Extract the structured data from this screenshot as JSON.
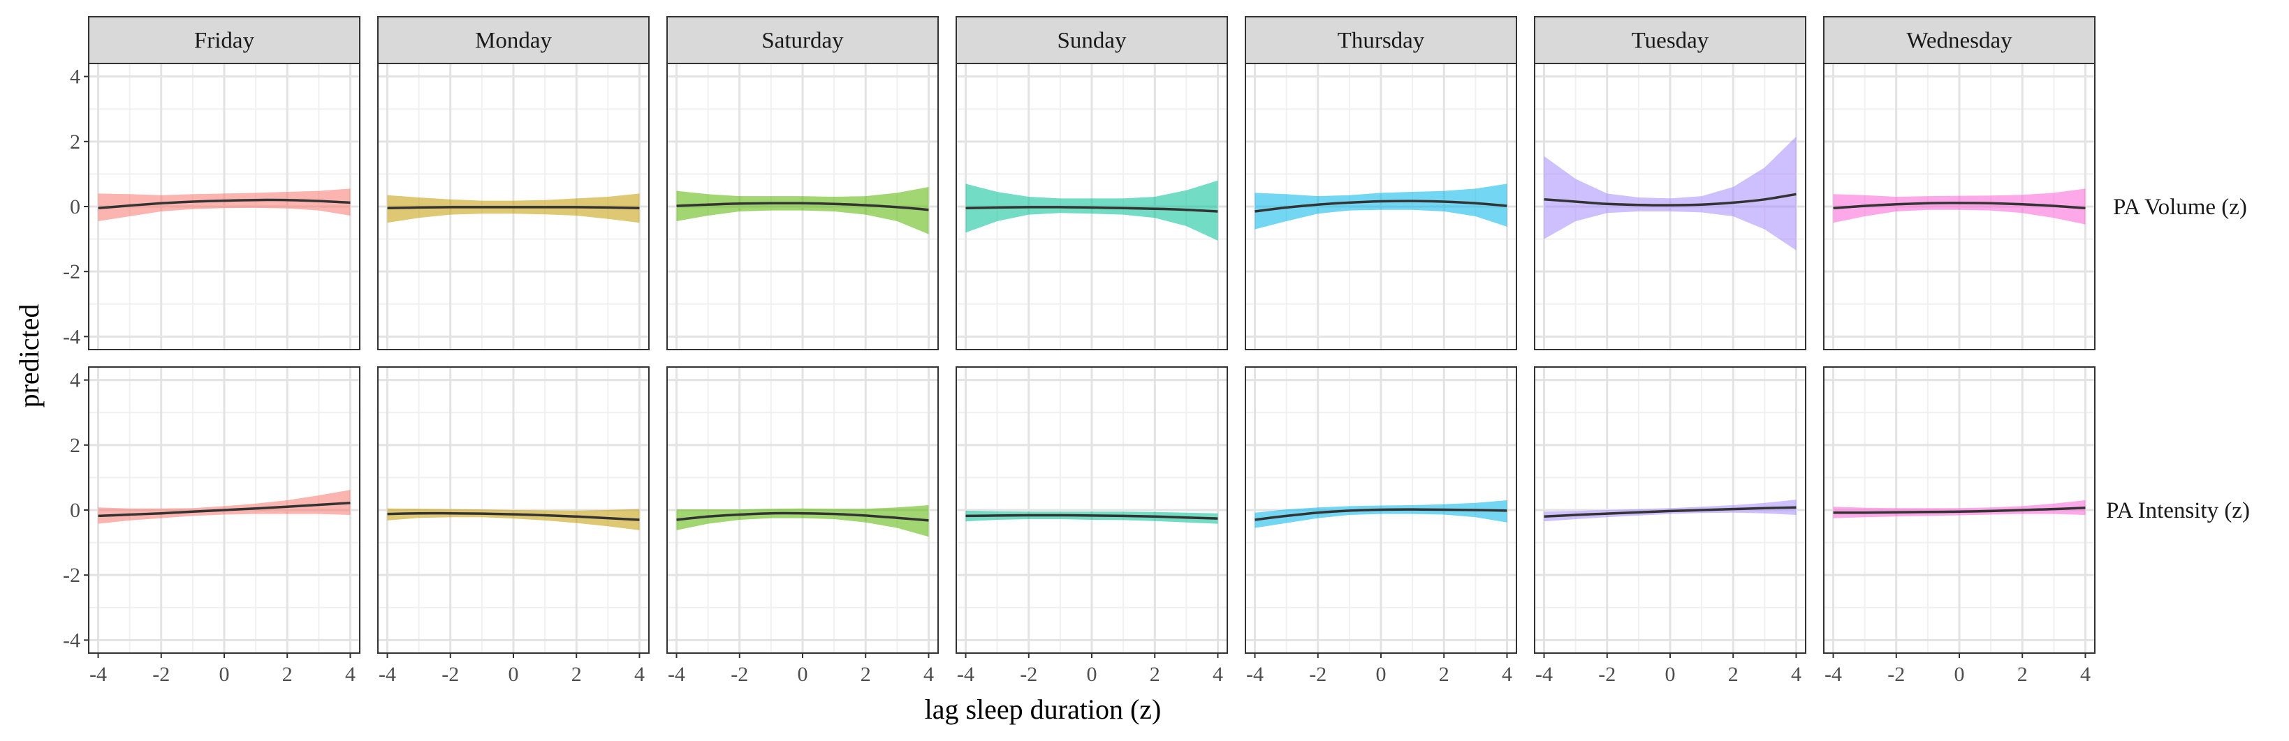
{
  "chart_data": {
    "type": "line",
    "xlabel": "lag sleep duration (z)",
    "ylabel": "predicted",
    "columns": [
      "Friday",
      "Monday",
      "Saturday",
      "Sunday",
      "Thursday",
      "Tuesday",
      "Wednesday"
    ],
    "rows": [
      "PA Volume (z)",
      "PA Intensity (z)"
    ],
    "xlim": [
      -4.3,
      4.3
    ],
    "ylim": [
      -4.4,
      4.4
    ],
    "x_ticks": [
      -4,
      -2,
      0,
      2,
      4
    ],
    "y_ticks": [
      -4,
      -2,
      0,
      2,
      4
    ],
    "x_tick_labels": [
      "-4",
      "-2",
      "0",
      "2",
      "4"
    ],
    "y_tick_labels": [
      "-4",
      "-2",
      "0",
      "2",
      "4"
    ],
    "grid": true,
    "line_color": "#333333",
    "colors": {
      "Friday": "#F8766D",
      "Monday": "#C49A00",
      "Saturday": "#53B400",
      "Sunday": "#00C094",
      "Thursday": "#00B6EB",
      "Tuesday": "#A58AFF",
      "Wednesday": "#FB61D7"
    },
    "x": [
      -4,
      -3,
      -2,
      -1,
      0,
      1,
      2,
      3,
      4
    ],
    "panels": [
      {
        "row": "PA Volume (z)",
        "col": "Friday",
        "fit": [
          -0.05,
          0.03,
          0.1,
          0.15,
          0.18,
          0.2,
          0.2,
          0.17,
          0.12
        ],
        "lower": [
          -0.45,
          -0.3,
          -0.15,
          -0.08,
          -0.05,
          -0.04,
          -0.06,
          -0.12,
          -0.28
        ],
        "upper": [
          0.4,
          0.38,
          0.35,
          0.38,
          0.4,
          0.42,
          0.45,
          0.48,
          0.55
        ]
      },
      {
        "row": "PA Volume (z)",
        "col": "Monday",
        "fit": [
          -0.05,
          -0.03,
          -0.02,
          -0.02,
          -0.02,
          -0.02,
          -0.02,
          -0.03,
          -0.05
        ],
        "lower": [
          -0.5,
          -0.35,
          -0.25,
          -0.22,
          -0.22,
          -0.24,
          -0.28,
          -0.38,
          -0.5
        ],
        "upper": [
          0.35,
          0.28,
          0.22,
          0.18,
          0.18,
          0.2,
          0.25,
          0.3,
          0.4
        ]
      },
      {
        "row": "PA Volume (z)",
        "col": "Saturday",
        "fit": [
          0.02,
          0.06,
          0.09,
          0.1,
          0.1,
          0.08,
          0.04,
          -0.02,
          -0.1
        ],
        "lower": [
          -0.45,
          -0.28,
          -0.15,
          -0.12,
          -0.12,
          -0.15,
          -0.25,
          -0.45,
          -0.85
        ],
        "upper": [
          0.48,
          0.38,
          0.32,
          0.32,
          0.32,
          0.3,
          0.32,
          0.42,
          0.6
        ]
      },
      {
        "row": "PA Volume (z)",
        "col": "Sunday",
        "fit": [
          -0.05,
          -0.03,
          -0.02,
          -0.02,
          -0.03,
          -0.05,
          -0.07,
          -0.1,
          -0.15
        ],
        "lower": [
          -0.8,
          -0.45,
          -0.25,
          -0.2,
          -0.22,
          -0.25,
          -0.35,
          -0.6,
          -1.05
        ],
        "upper": [
          0.7,
          0.45,
          0.3,
          0.25,
          0.25,
          0.25,
          0.3,
          0.5,
          0.8
        ]
      },
      {
        "row": "PA Volume (z)",
        "col": "Thursday",
        "fit": [
          -0.15,
          -0.03,
          0.06,
          0.12,
          0.16,
          0.17,
          0.15,
          0.1,
          0.02
        ],
        "lower": [
          -0.7,
          -0.45,
          -0.22,
          -0.12,
          -0.1,
          -0.1,
          -0.15,
          -0.3,
          -0.62
        ],
        "upper": [
          0.42,
          0.38,
          0.32,
          0.35,
          0.42,
          0.45,
          0.48,
          0.55,
          0.7
        ]
      },
      {
        "row": "PA Volume (z)",
        "col": "Tuesday",
        "fit": [
          0.22,
          0.15,
          0.08,
          0.05,
          0.04,
          0.06,
          0.12,
          0.22,
          0.38
        ],
        "lower": [
          -1.0,
          -0.45,
          -0.2,
          -0.15,
          -0.15,
          -0.18,
          -0.3,
          -0.7,
          -1.35
        ],
        "upper": [
          1.55,
          0.85,
          0.4,
          0.28,
          0.25,
          0.32,
          0.6,
          1.2,
          2.15
        ]
      },
      {
        "row": "PA Volume (z)",
        "col": "Wednesday",
        "fit": [
          -0.05,
          0.02,
          0.07,
          0.1,
          0.11,
          0.1,
          0.07,
          0.02,
          -0.05
        ],
        "lower": [
          -0.5,
          -0.3,
          -0.15,
          -0.1,
          -0.1,
          -0.12,
          -0.2,
          -0.35,
          -0.55
        ],
        "upper": [
          0.38,
          0.35,
          0.3,
          0.32,
          0.33,
          0.34,
          0.36,
          0.42,
          0.55
        ]
      },
      {
        "row": "PA Intensity (z)",
        "col": "Friday",
        "fit": [
          -0.18,
          -0.14,
          -0.1,
          -0.05,
          0.0,
          0.05,
          0.1,
          0.16,
          0.22
        ],
        "lower": [
          -0.42,
          -0.32,
          -0.25,
          -0.18,
          -0.14,
          -0.12,
          -0.12,
          -0.12,
          -0.15
        ],
        "upper": [
          0.08,
          0.05,
          0.05,
          0.06,
          0.12,
          0.2,
          0.3,
          0.45,
          0.62
        ]
      },
      {
        "row": "PA Intensity (z)",
        "col": "Monday",
        "fit": [
          -0.12,
          -0.1,
          -0.1,
          -0.11,
          -0.13,
          -0.16,
          -0.2,
          -0.25,
          -0.3
        ],
        "lower": [
          -0.32,
          -0.24,
          -0.22,
          -0.22,
          -0.26,
          -0.32,
          -0.4,
          -0.5,
          -0.62
        ],
        "upper": [
          0.05,
          0.04,
          0.03,
          0.02,
          0.0,
          -0.01,
          -0.02,
          0.0,
          0.03
        ]
      },
      {
        "row": "PA Intensity (z)",
        "col": "Saturday",
        "fit": [
          -0.3,
          -0.2,
          -0.14,
          -0.1,
          -0.1,
          -0.12,
          -0.17,
          -0.24,
          -0.32
        ],
        "lower": [
          -0.62,
          -0.42,
          -0.3,
          -0.25,
          -0.25,
          -0.28,
          -0.38,
          -0.55,
          -0.82
        ],
        "upper": [
          0.02,
          0.02,
          0.02,
          0.04,
          0.05,
          0.04,
          0.04,
          0.08,
          0.15
        ]
      },
      {
        "row": "PA Intensity (z)",
        "col": "Sunday",
        "fit": [
          -0.18,
          -0.17,
          -0.16,
          -0.16,
          -0.17,
          -0.18,
          -0.2,
          -0.23,
          -0.26
        ],
        "lower": [
          -0.35,
          -0.3,
          -0.28,
          -0.28,
          -0.3,
          -0.31,
          -0.34,
          -0.38,
          -0.42
        ],
        "upper": [
          -0.02,
          -0.04,
          -0.05,
          -0.05,
          -0.05,
          -0.05,
          -0.06,
          -0.08,
          -0.1
        ]
      },
      {
        "row": "PA Intensity (z)",
        "col": "Thursday",
        "fit": [
          -0.3,
          -0.18,
          -0.08,
          -0.02,
          0.01,
          0.02,
          0.01,
          0.0,
          -0.02
        ],
        "lower": [
          -0.55,
          -0.4,
          -0.25,
          -0.15,
          -0.12,
          -0.12,
          -0.14,
          -0.22,
          -0.38
        ],
        "upper": [
          -0.08,
          0.02,
          0.08,
          0.12,
          0.14,
          0.15,
          0.18,
          0.22,
          0.3
        ]
      },
      {
        "row": "PA Intensity (z)",
        "col": "Tuesday",
        "fit": [
          -0.2,
          -0.15,
          -0.11,
          -0.07,
          -0.03,
          0.0,
          0.03,
          0.06,
          0.08
        ],
        "lower": [
          -0.35,
          -0.28,
          -0.22,
          -0.17,
          -0.12,
          -0.09,
          -0.08,
          -0.1,
          -0.15
        ],
        "upper": [
          -0.05,
          -0.03,
          0.0,
          0.03,
          0.06,
          0.1,
          0.15,
          0.22,
          0.32
        ]
      },
      {
        "row": "PA Intensity (z)",
        "col": "Wednesday",
        "fit": [
          -0.08,
          -0.08,
          -0.07,
          -0.06,
          -0.05,
          -0.03,
          0.0,
          0.03,
          0.07
        ],
        "lower": [
          -0.25,
          -0.22,
          -0.2,
          -0.18,
          -0.16,
          -0.14,
          -0.12,
          -0.12,
          -0.15
        ],
        "upper": [
          0.1,
          0.07,
          0.06,
          0.06,
          0.06,
          0.08,
          0.12,
          0.2,
          0.3
        ]
      }
    ]
  }
}
